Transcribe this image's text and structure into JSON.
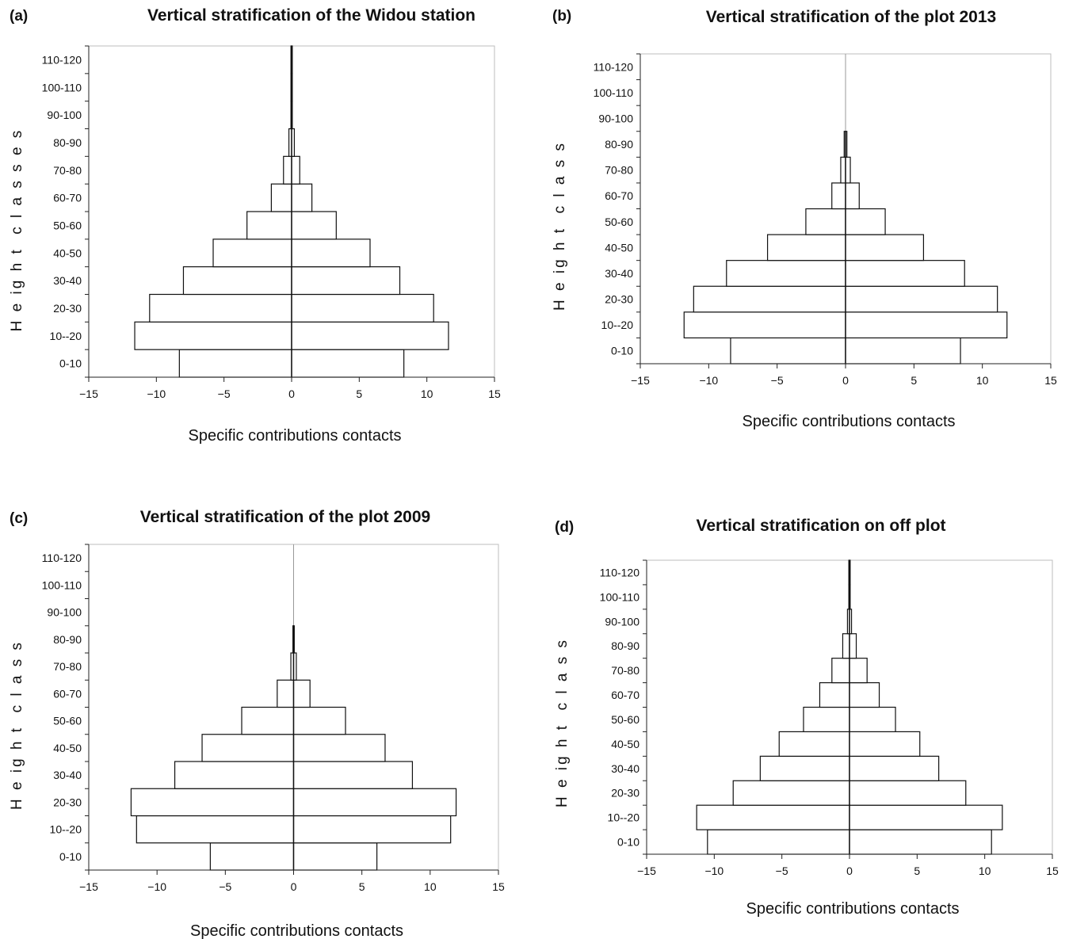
{
  "chart_data": [
    {
      "type": "bar",
      "orientation": "horizontal",
      "panel_label": "(a)",
      "title": "Vertical stratification of the Widou station",
      "xlabel": "Specific contributions contacts",
      "ylabel": "H e ig h t  c l a s s e s",
      "xlim": [
        -15,
        15
      ],
      "xticks": [
        "−15",
        "−10",
        "−5",
        "0",
        "5",
        "10",
        "15"
      ],
      "categories": [
        "0-10",
        "10--20",
        "20-30",
        "30-40",
        "40-50",
        "50-60",
        "60-70",
        "70-80",
        "80-90",
        "90-100",
        "100-110",
        "110-120"
      ],
      "values": [
        8.3,
        11.6,
        10.5,
        8.0,
        5.8,
        3.3,
        1.5,
        0.6,
        0.2,
        0.05,
        0.05,
        0.05
      ],
      "symmetric": true
    },
    {
      "type": "bar",
      "orientation": "horizontal",
      "panel_label": "(b)",
      "title": "Vertical stratification of the plot 2013",
      "xlabel": "Specific contributions contacts",
      "ylabel": "H e ig h t  c l a s s",
      "xlim": [
        -15,
        15
      ],
      "xticks": [
        "−15",
        "−10",
        "−5",
        "0",
        "5",
        "10",
        "15"
      ],
      "categories": [
        "0-10",
        "10--20",
        "20-30",
        "30-40",
        "40-50",
        "50-60",
        "60-70",
        "70-80",
        "80-90",
        "90-100",
        "100-110",
        "110-120"
      ],
      "values": [
        8.4,
        11.8,
        11.1,
        8.7,
        5.7,
        2.9,
        1.0,
        0.35,
        0.1,
        0,
        0,
        0
      ],
      "symmetric": true
    },
    {
      "type": "bar",
      "orientation": "horizontal",
      "panel_label": "(c)",
      "title": "Vertical stratification of the plot 2009",
      "xlabel": "Specific contributions contacts",
      "ylabel": "H e ig h t  c l a s s",
      "xlim": [
        -15,
        15
      ],
      "xticks": [
        "−15",
        "−10",
        "−5",
        "0",
        "5",
        "10",
        "15"
      ],
      "categories": [
        "0-10",
        "10--20",
        "20-30",
        "30-40",
        "40-50",
        "50-60",
        "60-70",
        "70-80",
        "80-90",
        "90-100",
        "100-110",
        "110-120"
      ],
      "values": [
        6.1,
        11.5,
        11.9,
        8.7,
        6.7,
        3.8,
        1.2,
        0.2,
        0.05,
        0,
        0,
        0
      ],
      "symmetric": true
    },
    {
      "type": "bar",
      "orientation": "horizontal",
      "panel_label": "(d)",
      "title": "Vertical stratification on off plot",
      "xlabel": "Specific contributions contacts",
      "ylabel": "H e ig h t  c l a s s",
      "xlim": [
        -15,
        15
      ],
      "xticks": [
        "−15",
        "−10",
        "−5",
        "0",
        "5",
        "10",
        "15"
      ],
      "categories": [
        "0-10",
        "10--20",
        "20-30",
        "30-40",
        "40-50",
        "50-60",
        "60-70",
        "70-80",
        "80-90",
        "90-100",
        "100-110",
        "110-120"
      ],
      "values": [
        10.5,
        11.3,
        8.6,
        6.6,
        5.2,
        3.4,
        2.2,
        1.3,
        0.5,
        0.15,
        0.05,
        0.05
      ],
      "symmetric": true
    }
  ]
}
